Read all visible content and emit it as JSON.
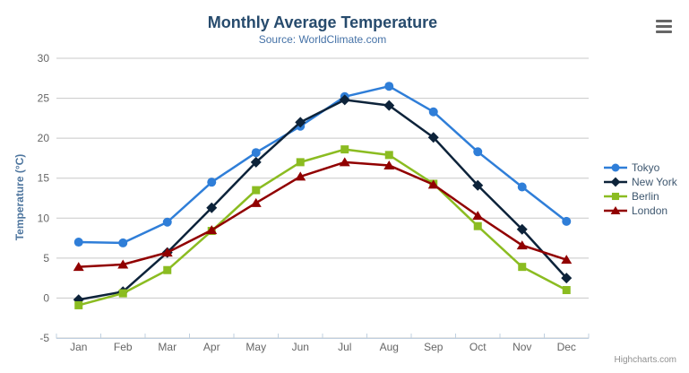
{
  "chart_data": {
    "type": "line",
    "title": "Monthly Average Temperature",
    "subtitle": "Source: WorldClimate.com",
    "categories": [
      "Jan",
      "Feb",
      "Mar",
      "Apr",
      "May",
      "Jun",
      "Jul",
      "Aug",
      "Sep",
      "Oct",
      "Nov",
      "Dec"
    ],
    "xlabel": "",
    "ylabel": "Temperature (°C)",
    "ylim": [
      -5,
      30
    ],
    "ytick_interval": 5,
    "ytick_labels": [
      "-5",
      "0",
      "5",
      "10",
      "15",
      "20",
      "25",
      "30"
    ],
    "grid": true,
    "legend_position": "right",
    "series": [
      {
        "name": "Tokyo",
        "color": "#2f7ed8",
        "marker": "circle",
        "values": [
          7.0,
          6.9,
          9.5,
          14.5,
          18.2,
          21.5,
          25.2,
          26.5,
          23.3,
          18.3,
          13.9,
          9.6
        ]
      },
      {
        "name": "New York",
        "color": "#0d233a",
        "marker": "diamond",
        "values": [
          -0.2,
          0.8,
          5.7,
          11.3,
          17.0,
          22.0,
          24.8,
          24.1,
          20.1,
          14.1,
          8.6,
          2.5
        ]
      },
      {
        "name": "Berlin",
        "color": "#8bbc21",
        "marker": "square",
        "values": [
          -0.9,
          0.6,
          3.5,
          8.4,
          13.5,
          17.0,
          18.6,
          17.9,
          14.3,
          9.0,
          3.9,
          1.0
        ]
      },
      {
        "name": "London",
        "color": "#910000",
        "marker": "triangle",
        "values": [
          3.9,
          4.2,
          5.7,
          8.5,
          11.9,
          15.2,
          17.0,
          16.6,
          14.2,
          10.3,
          6.6,
          4.8
        ]
      }
    ],
    "credits": "Highcharts.com"
  },
  "icons": {
    "export_menu": "hamburger-icon"
  },
  "colors": {
    "title": "#274b6d",
    "subtitle": "#4572a7",
    "axis_title": "#4d759e",
    "axis_labels": "#666666",
    "gridline": "#c8c8c8",
    "axis_line": "#c0d0e0",
    "legend_text": "#3e576f",
    "credits": "#909090",
    "menu_icon": "#666666",
    "background": "#ffffff"
  }
}
